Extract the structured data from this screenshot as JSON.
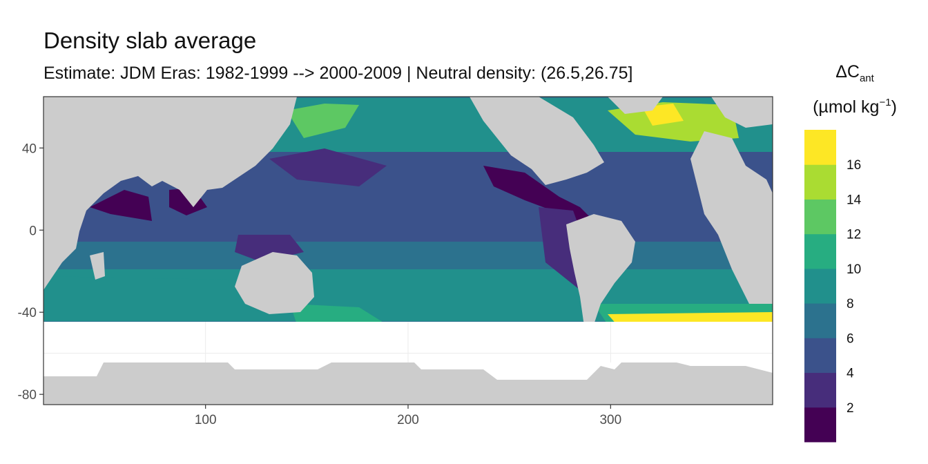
{
  "chart_data": {
    "type": "heatmap",
    "title": "Density slab average",
    "subtitle": "Estimate: JDM Eras: 1982-1999 --> 2000-2009 | Neutral density: (26.5,26.75]",
    "xlabel": "",
    "ylabel": "",
    "xlim": [
      20,
      380
    ],
    "ylim": [
      -85,
      65
    ],
    "x_ticks": [
      100,
      200,
      300
    ],
    "y_ticks": [
      40,
      0,
      -40,
      -80
    ],
    "grid": true,
    "legend_position": "right",
    "legend_title": {
      "symbol": "ΔC",
      "subscript": "ant",
      "units_prefix": "(µmol kg",
      "units_exponent": "−1",
      "units_suffix": ")"
    },
    "legend_bins": [
      0,
      2,
      4,
      6,
      8,
      10,
      12,
      14,
      16,
      18
    ],
    "legend_colors": [
      "#440154",
      "#472D7B",
      "#3B528B",
      "#2C728E",
      "#21908C",
      "#27AD81",
      "#5DC863",
      "#AADC32",
      "#FDE725"
    ],
    "legend_labels": [
      2,
      4,
      6,
      8,
      10,
      12,
      14,
      16
    ],
    "colors": {
      "land": "#cccccc",
      "nodata": "#ffffff",
      "grid": "#ebebeb",
      "frame": "#333333"
    }
  }
}
